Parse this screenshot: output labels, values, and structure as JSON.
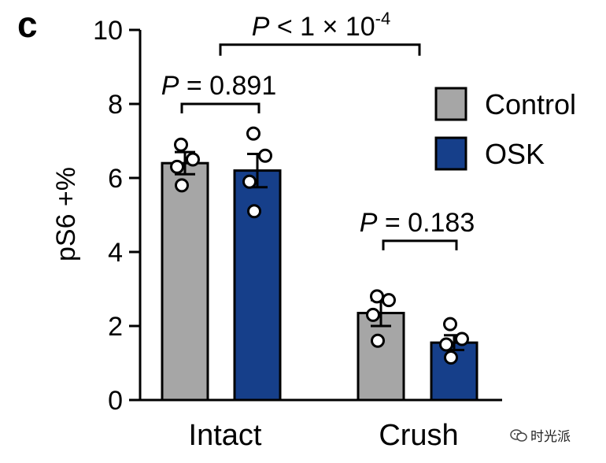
{
  "panel_label": "c",
  "watermark": "时光派",
  "chart_data": {
    "type": "bar",
    "ylabel": "pS6 +%",
    "ylim": [
      0,
      10
    ],
    "yticks": [
      "0",
      "2",
      "4",
      "6",
      "8",
      "10"
    ],
    "categories": [
      "Intact",
      "Crush"
    ],
    "legend_position": "right",
    "series": [
      {
        "name": "Control",
        "color": "#a6a6a6",
        "values": [
          6.4,
          2.35
        ],
        "sem": [
          0.3,
          0.35
        ],
        "points": [
          [
            6.9,
            6.5,
            6.3,
            5.8
          ],
          [
            2.8,
            2.7,
            2.3,
            1.6
          ]
        ]
      },
      {
        "name": "OSK",
        "color": "#163f8a",
        "values": [
          6.2,
          1.55
        ],
        "sem": [
          0.45,
          0.2
        ],
        "points": [
          [
            7.2,
            6.6,
            5.9,
            5.1
          ],
          [
            2.05,
            1.65,
            1.5,
            1.15
          ]
        ]
      }
    ],
    "annotations": [
      {
        "label": "P = 0.891",
        "between": [
          "Intact-Control",
          "Intact-OSK"
        ],
        "y": 8.0
      },
      {
        "label": "P = 0.183",
        "between": [
          "Crush-Control",
          "Crush-OSK"
        ],
        "y": 4.3
      },
      {
        "label": "P < 1 × 10",
        "superscript": "-4",
        "between": [
          "Intact",
          "Crush"
        ],
        "y": 9.6
      }
    ]
  }
}
